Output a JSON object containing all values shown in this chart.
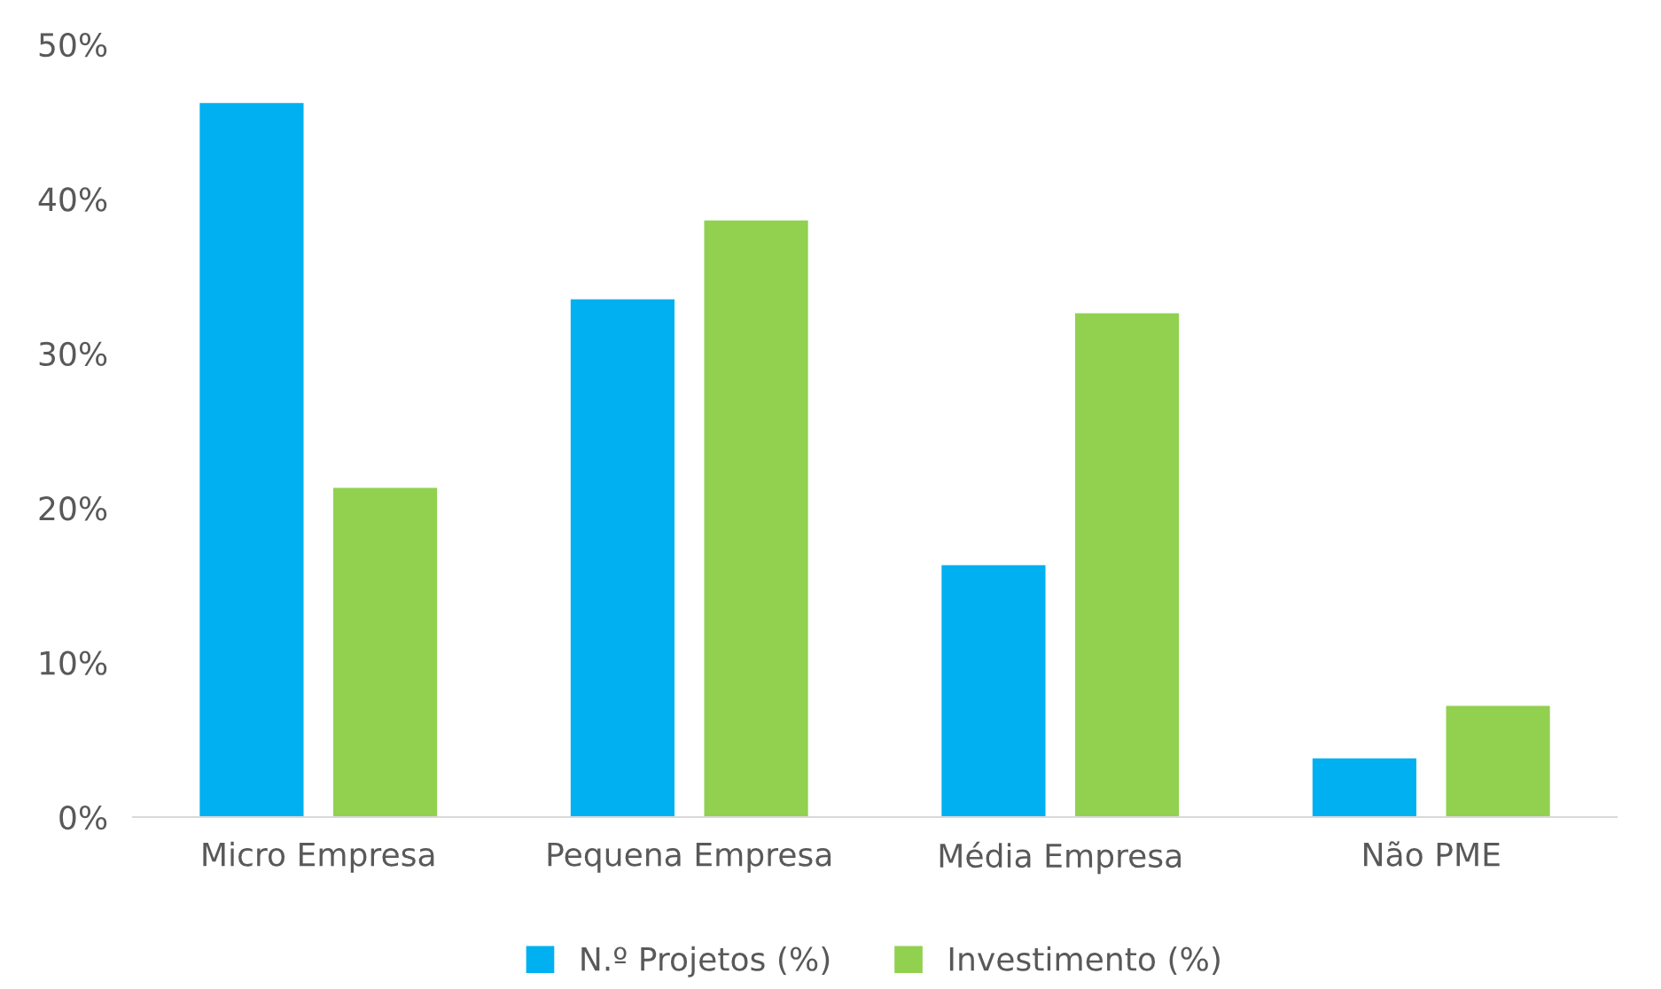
{
  "chart_data": {
    "type": "bar",
    "categories": [
      "Micro Empresa",
      "Pequena Empresa",
      "Média Empresa",
      "Não PME"
    ],
    "series": [
      {
        "name": "N.º Projetos (%)",
        "color": "#00b0f0",
        "values": [
          46.2,
          33.5,
          16.3,
          3.8
        ]
      },
      {
        "name": "Investimento (%)",
        "color": "#92d050",
        "values": [
          21.3,
          38.6,
          32.6,
          7.2
        ]
      }
    ],
    "ylim": [
      0,
      50
    ],
    "yticks": [
      {
        "value": 0,
        "label": "0%"
      },
      {
        "value": 10,
        "label": "10%"
      },
      {
        "value": 20,
        "label": "20%"
      },
      {
        "value": 30,
        "label": "30%"
      },
      {
        "value": 40,
        "label": "40%"
      },
      {
        "value": 50,
        "label": "50%"
      }
    ],
    "grid": false,
    "legend": "bottom"
  }
}
